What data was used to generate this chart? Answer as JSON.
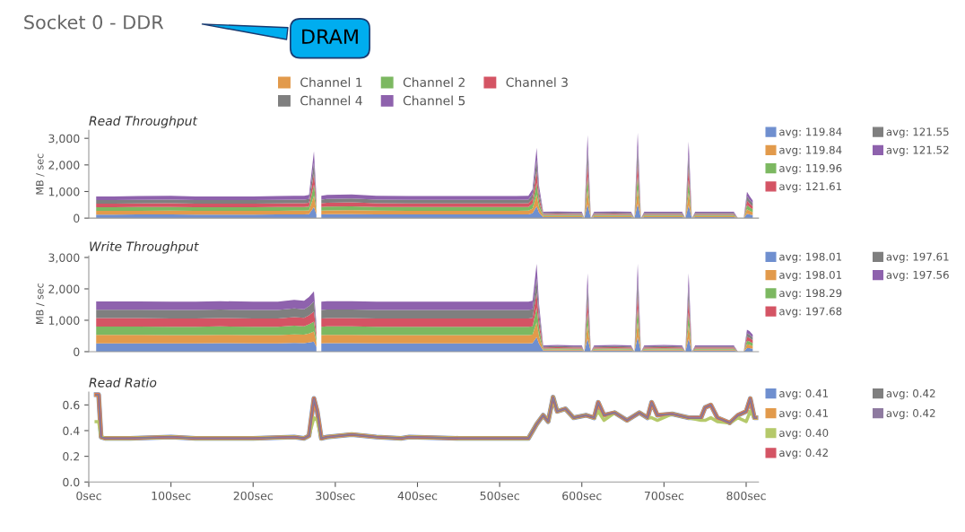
{
  "chart_data": [
    {
      "type": "other",
      "title": "Socket 0 - DDR",
      "annotations": [
        "DRAM"
      ]
    },
    {
      "type": "area",
      "stacked": true,
      "title": "Read Throughput",
      "ylabel": "MB / sec",
      "xlim": [
        0,
        815
      ],
      "ylim": [
        0,
        3300
      ],
      "yticks": [
        {
          "value": 0,
          "label": "0"
        },
        {
          "value": 1000,
          "label": "1,000"
        },
        {
          "value": 2000,
          "label": "2,000"
        },
        {
          "value": 3000,
          "label": "3,000"
        }
      ],
      "tick_labels": "y",
      "legend": "top",
      "grid": false,
      "x": [
        9,
        15,
        30,
        60,
        100,
        130,
        160,
        200,
        230,
        250,
        262,
        268,
        274,
        277,
        280,
        283,
        290,
        320,
        350,
        390,
        420,
        450,
        490,
        520,
        535,
        540,
        545,
        548,
        553,
        570,
        590,
        600,
        603,
        607,
        611,
        615,
        640,
        660,
        664,
        668,
        672,
        676,
        700,
        722,
        726,
        730,
        734,
        738,
        760,
        785,
        790,
        797,
        801,
        804,
        808
      ],
      "annotations": [
        "avg: 119.84",
        "avg: 119.84",
        "avg: 119.96",
        "avg: 121.61",
        "avg: 121.55",
        "avg: 121.52"
      ],
      "series": [
        {
          "color": "#6f8fcf",
          "values": [
            135,
            135,
            135,
            138,
            140,
            135,
            135,
            135,
            138,
            140,
            140,
            145,
            420,
            140,
            null,
            140,
            145,
            148,
            140,
            138,
            138,
            138,
            138,
            138,
            140,
            180,
            440,
            200,
            40,
            42,
            40,
            40,
            0,
            520,
            0,
            40,
            42,
            40,
            0,
            535,
            0,
            40,
            40,
            40,
            0,
            480,
            0,
            40,
            40,
            40,
            0,
            0,
            165,
            140,
            110
          ]
        },
        {
          "name": "Channel 1",
          "color": "#e29a4b",
          "values": [
            135,
            135,
            135,
            138,
            140,
            135,
            135,
            135,
            138,
            140,
            140,
            145,
            420,
            140,
            null,
            140,
            145,
            148,
            140,
            138,
            138,
            138,
            138,
            138,
            140,
            180,
            440,
            200,
            40,
            42,
            40,
            40,
            0,
            520,
            0,
            40,
            42,
            40,
            0,
            535,
            0,
            40,
            40,
            40,
            0,
            480,
            0,
            40,
            40,
            40,
            0,
            0,
            165,
            140,
            110
          ]
        },
        {
          "name": "Channel 2",
          "color": "#7cb861",
          "values": [
            135,
            135,
            135,
            138,
            140,
            135,
            135,
            135,
            138,
            140,
            140,
            145,
            420,
            140,
            null,
            140,
            145,
            148,
            140,
            138,
            138,
            138,
            138,
            138,
            140,
            180,
            440,
            200,
            40,
            42,
            40,
            40,
            0,
            520,
            0,
            40,
            42,
            40,
            0,
            535,
            0,
            40,
            40,
            40,
            0,
            480,
            0,
            40,
            40,
            40,
            0,
            0,
            165,
            140,
            110
          ]
        },
        {
          "name": "Channel 3",
          "color": "#d45464",
          "values": [
            135,
            135,
            135,
            138,
            140,
            135,
            135,
            135,
            138,
            140,
            140,
            145,
            420,
            140,
            null,
            140,
            145,
            148,
            140,
            138,
            138,
            138,
            138,
            138,
            140,
            180,
            440,
            200,
            40,
            42,
            40,
            40,
            0,
            520,
            0,
            40,
            42,
            40,
            0,
            535,
            0,
            40,
            40,
            40,
            0,
            480,
            0,
            40,
            40,
            40,
            0,
            0,
            165,
            140,
            110
          ]
        },
        {
          "name": "Channel 4",
          "color": "#7f7f7f",
          "values": [
            135,
            135,
            135,
            138,
            140,
            135,
            135,
            135,
            138,
            140,
            140,
            145,
            420,
            140,
            null,
            140,
            145,
            148,
            140,
            138,
            138,
            138,
            138,
            138,
            140,
            180,
            440,
            200,
            40,
            42,
            40,
            40,
            0,
            520,
            0,
            40,
            42,
            40,
            0,
            535,
            0,
            40,
            40,
            40,
            0,
            480,
            0,
            40,
            40,
            40,
            0,
            0,
            165,
            140,
            110
          ]
        },
        {
          "name": "Channel 5",
          "color": "#8e62ad",
          "values": [
            135,
            135,
            135,
            138,
            140,
            135,
            135,
            135,
            138,
            140,
            140,
            145,
            420,
            140,
            null,
            140,
            145,
            148,
            140,
            138,
            138,
            138,
            138,
            138,
            140,
            180,
            440,
            200,
            40,
            42,
            40,
            40,
            0,
            520,
            0,
            40,
            42,
            40,
            0,
            535,
            0,
            40,
            40,
            40,
            0,
            480,
            0,
            40,
            40,
            40,
            0,
            0,
            165,
            140,
            110
          ]
        }
      ]
    },
    {
      "type": "area",
      "stacked": true,
      "title": "Write Throughput",
      "ylabel": "MB / sec",
      "xlim": [
        0,
        815
      ],
      "ylim": [
        0,
        3050
      ],
      "yticks": [
        {
          "value": 0,
          "label": "0"
        },
        {
          "value": 1000,
          "label": "1,000"
        },
        {
          "value": 2000,
          "label": "2,000"
        },
        {
          "value": 3000,
          "label": "3,000"
        }
      ],
      "tick_labels": "y",
      "grid": false,
      "x": [
        9,
        15,
        30,
        60,
        100,
        130,
        160,
        200,
        230,
        250,
        262,
        268,
        274,
        277,
        280,
        283,
        290,
        320,
        350,
        390,
        420,
        450,
        490,
        520,
        535,
        540,
        545,
        548,
        553,
        570,
        590,
        600,
        603,
        607,
        611,
        615,
        640,
        660,
        664,
        668,
        672,
        676,
        700,
        722,
        726,
        730,
        734,
        738,
        760,
        785,
        790,
        797,
        801,
        804,
        808
      ],
      "annotations": [
        "avg: 198.01",
        "avg: 198.01",
        "avg: 198.29",
        "avg: 197.68",
        "avg: 197.61",
        "avg: 197.56"
      ],
      "series": [
        {
          "color": "#6f8fcf",
          "values": [
            267,
            267,
            267,
            267,
            265,
            265,
            268,
            265,
            265,
            275,
            270,
            290,
            320,
            150,
            null,
            265,
            268,
            268,
            265,
            265,
            265,
            265,
            265,
            265,
            265,
            270,
            467,
            250,
            33,
            35,
            33,
            33,
            0,
            417,
            0,
            33,
            35,
            33,
            0,
            467,
            0,
            33,
            35,
            33,
            0,
            417,
            0,
            33,
            33,
            33,
            0,
            0,
            117,
            110,
            90
          ]
        },
        {
          "color": "#e29a4b",
          "values": [
            267,
            267,
            267,
            267,
            265,
            265,
            268,
            265,
            265,
            275,
            270,
            290,
            320,
            150,
            null,
            265,
            268,
            268,
            265,
            265,
            265,
            265,
            265,
            265,
            265,
            270,
            467,
            250,
            33,
            35,
            33,
            33,
            0,
            417,
            0,
            33,
            35,
            33,
            0,
            467,
            0,
            33,
            35,
            33,
            0,
            417,
            0,
            33,
            33,
            33,
            0,
            0,
            117,
            110,
            90
          ]
        },
        {
          "color": "#7cb861",
          "values": [
            267,
            267,
            267,
            267,
            265,
            265,
            268,
            265,
            265,
            275,
            270,
            290,
            320,
            150,
            null,
            265,
            268,
            268,
            265,
            265,
            265,
            265,
            265,
            265,
            265,
            270,
            467,
            250,
            33,
            35,
            33,
            33,
            0,
            417,
            0,
            33,
            35,
            33,
            0,
            467,
            0,
            33,
            35,
            33,
            0,
            417,
            0,
            33,
            33,
            33,
            0,
            0,
            117,
            110,
            90
          ]
        },
        {
          "color": "#d45464",
          "values": [
            267,
            267,
            267,
            267,
            265,
            265,
            268,
            265,
            265,
            275,
            270,
            290,
            320,
            150,
            null,
            265,
            268,
            268,
            265,
            265,
            265,
            265,
            265,
            265,
            265,
            270,
            467,
            250,
            33,
            35,
            33,
            33,
            0,
            417,
            0,
            33,
            35,
            33,
            0,
            467,
            0,
            33,
            35,
            33,
            0,
            417,
            0,
            33,
            33,
            33,
            0,
            0,
            117,
            110,
            90
          ]
        },
        {
          "color": "#7f7f7f",
          "values": [
            267,
            267,
            267,
            267,
            265,
            265,
            268,
            265,
            265,
            275,
            270,
            290,
            320,
            150,
            null,
            265,
            268,
            268,
            265,
            265,
            265,
            265,
            265,
            265,
            265,
            270,
            467,
            250,
            33,
            35,
            33,
            33,
            0,
            417,
            0,
            33,
            35,
            33,
            0,
            467,
            0,
            33,
            35,
            33,
            0,
            417,
            0,
            33,
            33,
            33,
            0,
            0,
            117,
            110,
            90
          ]
        },
        {
          "color": "#8e62ad",
          "values": [
            267,
            267,
            267,
            267,
            265,
            265,
            268,
            265,
            265,
            275,
            270,
            290,
            320,
            150,
            null,
            265,
            268,
            268,
            265,
            265,
            265,
            265,
            265,
            265,
            265,
            270,
            467,
            250,
            33,
            35,
            33,
            33,
            0,
            417,
            0,
            33,
            35,
            33,
            0,
            467,
            0,
            33,
            35,
            33,
            0,
            417,
            0,
            33,
            33,
            33,
            0,
            0,
            117,
            110,
            90
          ]
        }
      ]
    },
    {
      "type": "line",
      "title": "Read Ratio",
      "xlim": [
        0,
        815
      ],
      "xticks": [
        {
          "value": 0,
          "label": "0sec"
        },
        {
          "value": 100,
          "label": "100sec"
        },
        {
          "value": 200,
          "label": "200sec"
        },
        {
          "value": 300,
          "label": "300sec"
        },
        {
          "value": 400,
          "label": "400sec"
        },
        {
          "value": 500,
          "label": "500sec"
        },
        {
          "value": 600,
          "label": "600sec"
        },
        {
          "value": 700,
          "label": "700sec"
        },
        {
          "value": 800,
          "label": "800sec"
        }
      ],
      "ylim": [
        0,
        0.7
      ],
      "yticks": [
        {
          "value": 0,
          "label": "0.0"
        },
        {
          "value": 0.2,
          "label": "0.2"
        },
        {
          "value": 0.4,
          "label": "0.4"
        },
        {
          "value": 0.6,
          "label": "0.6"
        }
      ],
      "grid": false,
      "marker": "none",
      "line_style": "solid",
      "x": [
        9,
        12,
        15,
        20,
        50,
        100,
        130,
        200,
        250,
        262,
        268,
        274,
        278,
        283,
        290,
        320,
        350,
        380,
        390,
        450,
        500,
        535,
        545,
        553,
        559,
        565,
        570,
        580,
        590,
        605,
        615,
        620,
        627,
        640,
        655,
        670,
        680,
        685,
        692,
        710,
        730,
        745,
        750,
        757,
        765,
        780,
        790,
        800,
        805,
        810,
        812
      ],
      "annotations": [
        "avg: 0.41",
        "avg: 0.41",
        "avg: 0.40",
        "avg: 0.42",
        "avg: 0.42",
        "avg: 0.42"
      ],
      "series": [
        {
          "color": "#6f8fcf",
          "values": [
            0.68,
            0.68,
            0.35,
            0.34,
            0.34,
            0.35,
            0.34,
            0.34,
            0.35,
            0.34,
            0.36,
            0.65,
            0.55,
            0.34,
            0.35,
            0.37,
            0.35,
            0.34,
            0.35,
            0.34,
            0.34,
            0.34,
            0.45,
            0.52,
            0.47,
            0.66,
            0.55,
            0.57,
            0.5,
            0.52,
            0.5,
            0.62,
            0.52,
            0.54,
            0.48,
            0.54,
            0.5,
            0.62,
            0.52,
            0.53,
            0.5,
            0.5,
            0.58,
            0.6,
            0.5,
            0.46,
            0.52,
            0.55,
            0.65,
            0.5,
            0.5
          ]
        },
        {
          "color": "#e29a4b",
          "values": [
            0.68,
            0.68,
            0.35,
            0.34,
            0.34,
            0.35,
            0.34,
            0.34,
            0.35,
            0.34,
            0.36,
            0.65,
            0.55,
            0.34,
            0.35,
            0.37,
            0.35,
            0.34,
            0.35,
            0.34,
            0.34,
            0.34,
            0.45,
            0.52,
            0.47,
            0.66,
            0.55,
            0.57,
            0.5,
            0.52,
            0.5,
            0.62,
            0.52,
            0.54,
            0.48,
            0.54,
            0.5,
            0.62,
            0.52,
            0.53,
            0.5,
            0.5,
            0.58,
            0.6,
            0.5,
            0.46,
            0.52,
            0.55,
            0.65,
            0.5,
            0.5
          ]
        },
        {
          "color": "#b5c96a",
          "values": [
            0.47,
            0.47,
            0.35,
            0.34,
            0.34,
            0.35,
            0.34,
            0.34,
            0.35,
            0.34,
            0.36,
            0.5,
            0.48,
            0.34,
            0.35,
            0.37,
            0.35,
            0.34,
            0.35,
            0.34,
            0.34,
            0.34,
            0.45,
            0.52,
            0.47,
            0.66,
            0.55,
            0.57,
            0.5,
            0.52,
            0.5,
            0.55,
            0.48,
            0.54,
            0.48,
            0.54,
            0.5,
            0.5,
            0.48,
            0.53,
            0.5,
            0.48,
            0.48,
            0.5,
            0.47,
            0.46,
            0.5,
            0.47,
            0.55,
            0.5,
            0.5
          ]
        },
        {
          "color": "#d45464",
          "values": [
            0.68,
            0.68,
            0.35,
            0.34,
            0.34,
            0.35,
            0.34,
            0.34,
            0.35,
            0.34,
            0.36,
            0.65,
            0.55,
            0.34,
            0.35,
            0.37,
            0.35,
            0.34,
            0.35,
            0.34,
            0.34,
            0.34,
            0.45,
            0.52,
            0.47,
            0.66,
            0.55,
            0.57,
            0.5,
            0.52,
            0.5,
            0.62,
            0.52,
            0.54,
            0.48,
            0.54,
            0.5,
            0.62,
            0.52,
            0.53,
            0.5,
            0.5,
            0.58,
            0.6,
            0.5,
            0.46,
            0.52,
            0.55,
            0.65,
            0.5,
            0.5
          ]
        },
        {
          "color": "#7f7f7f",
          "values": [
            0.68,
            0.68,
            0.35,
            0.34,
            0.34,
            0.35,
            0.34,
            0.34,
            0.35,
            0.34,
            0.36,
            0.65,
            0.55,
            0.34,
            0.35,
            0.37,
            0.35,
            0.34,
            0.35,
            0.34,
            0.34,
            0.34,
            0.45,
            0.52,
            0.47,
            0.66,
            0.55,
            0.57,
            0.5,
            0.52,
            0.5,
            0.62,
            0.52,
            0.54,
            0.48,
            0.54,
            0.5,
            0.62,
            0.52,
            0.53,
            0.5,
            0.5,
            0.58,
            0.6,
            0.5,
            0.46,
            0.52,
            0.55,
            0.65,
            0.5,
            0.5
          ]
        },
        {
          "color": "#8e7aa0",
          "values": [
            0.68,
            0.68,
            0.35,
            0.34,
            0.34,
            0.35,
            0.34,
            0.34,
            0.35,
            0.34,
            0.36,
            0.65,
            0.55,
            0.34,
            0.35,
            0.37,
            0.35,
            0.34,
            0.35,
            0.34,
            0.34,
            0.34,
            0.45,
            0.52,
            0.47,
            0.66,
            0.55,
            0.57,
            0.5,
            0.52,
            0.5,
            0.62,
            0.52,
            0.54,
            0.48,
            0.54,
            0.5,
            0.62,
            0.52,
            0.53,
            0.5,
            0.5,
            0.58,
            0.6,
            0.5,
            0.46,
            0.52,
            0.55,
            0.65,
            0.5,
            0.5
          ]
        }
      ]
    }
  ]
}
